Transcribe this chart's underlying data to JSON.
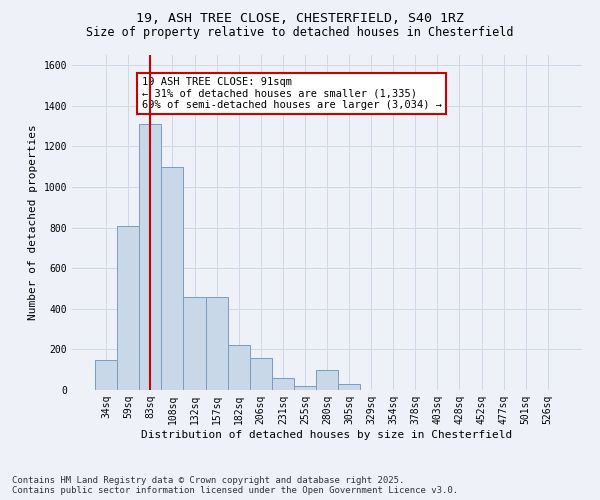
{
  "title_line1": "19, ASH TREE CLOSE, CHESTERFIELD, S40 1RZ",
  "title_line2": "Size of property relative to detached houses in Chesterfield",
  "xlabel": "Distribution of detached houses by size in Chesterfield",
  "ylabel": "Number of detached properties",
  "categories": [
    "34sq",
    "59sq",
    "83sq",
    "108sq",
    "132sq",
    "157sq",
    "182sq",
    "206sq",
    "231sq",
    "255sq",
    "280sq",
    "305sq",
    "329sq",
    "354sq",
    "378sq",
    "403sq",
    "428sq",
    "452sq",
    "477sq",
    "501sq",
    "526sq"
  ],
  "values": [
    150,
    810,
    1310,
    1100,
    460,
    460,
    220,
    160,
    60,
    20,
    100,
    30,
    0,
    0,
    0,
    0,
    0,
    0,
    0,
    0,
    0
  ],
  "bar_color": "#c8d8e8",
  "bar_edge_color": "#7a9cbf",
  "vline_x_index": 2,
  "vline_color": "#cc0000",
  "annotation_line1": "19 ASH TREE CLOSE: 91sqm",
  "annotation_line2": "← 31% of detached houses are smaller (1,335)",
  "annotation_line3": "69% of semi-detached houses are larger (3,034) →",
  "annotation_box_color": "#ffffff",
  "annotation_box_edge_color": "#cc0000",
  "ylim": [
    0,
    1650
  ],
  "yticks": [
    0,
    200,
    400,
    600,
    800,
    1000,
    1200,
    1400,
    1600
  ],
  "grid_color": "#d0d8e8",
  "background_color": "#eef2f8",
  "footer_text": "Contains HM Land Registry data © Crown copyright and database right 2025.\nContains public sector information licensed under the Open Government Licence v3.0.",
  "title_fontsize": 9.5,
  "subtitle_fontsize": 8.5,
  "xlabel_fontsize": 8,
  "ylabel_fontsize": 8,
  "tick_fontsize": 7,
  "annotation_fontsize": 7.5,
  "footer_fontsize": 6.5
}
